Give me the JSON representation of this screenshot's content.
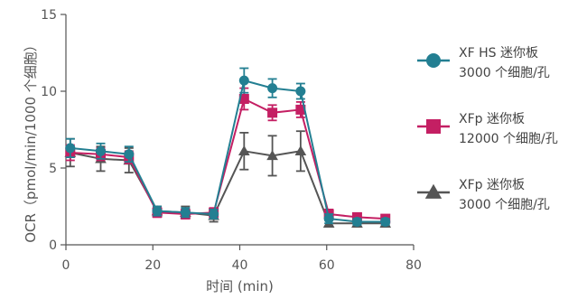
{
  "chart_data": {
    "type": "line",
    "title": "",
    "xlabel": "时间 (min)",
    "ylabel": "OCR（pmol/min/1000 个细胞）",
    "xlim": [
      0,
      80
    ],
    "ylim": [
      0,
      15
    ],
    "xticks": [
      "0",
      "20",
      "40",
      "60",
      "80"
    ],
    "yticks": [
      "0",
      "5",
      "10",
      "15"
    ],
    "grid": false,
    "legend_position": "right",
    "series": [
      {
        "name_line1": "XF HS 迷你板",
        "name_line2": "3000 个细胞/孔",
        "color": "#237f92",
        "marker": "circle",
        "x": [
          1,
          8,
          14.5,
          21,
          27.5,
          34,
          41,
          47.5,
          54,
          60.5,
          67,
          73.5
        ],
        "y": [
          6.3,
          6.1,
          5.9,
          2.2,
          2.1,
          2.0,
          10.7,
          10.2,
          10.0,
          1.7,
          1.5,
          1.5
        ],
        "err": [
          0.6,
          0.5,
          0.5,
          0.3,
          0.3,
          0.3,
          0.8,
          0.6,
          0.5,
          0.3,
          0.2,
          0.2
        ]
      },
      {
        "name_line1": "XFp 迷你板",
        "name_line2": "12000 个细胞/孔",
        "color": "#c41f63",
        "marker": "square",
        "x": [
          1,
          8,
          14.5,
          21,
          27.5,
          34,
          41,
          47.5,
          54,
          60.5,
          67,
          73.5
        ],
        "y": [
          6.0,
          5.9,
          5.7,
          2.1,
          2.0,
          2.1,
          9.5,
          8.6,
          8.8,
          2.0,
          1.8,
          1.7
        ],
        "err": [
          0.5,
          0.4,
          0.4,
          0.3,
          0.3,
          0.3,
          0.7,
          0.5,
          0.5,
          0.3,
          0.2,
          0.2
        ]
      },
      {
        "name_line1": "XFp 迷你板",
        "name_line2": "3000 个细胞/孔",
        "color": "#555555",
        "marker": "triangle",
        "x": [
          1,
          8,
          14.5,
          21,
          27.5,
          34,
          41,
          47.5,
          54,
          60.5,
          67,
          73.5
        ],
        "y": [
          6.0,
          5.6,
          5.5,
          2.2,
          2.1,
          1.9,
          6.1,
          5.8,
          6.1,
          1.4,
          1.4,
          1.4
        ],
        "err": [
          0.9,
          0.8,
          0.8,
          0.3,
          0.4,
          0.4,
          1.2,
          1.3,
          1.3,
          0.2,
          0.2,
          0.2
        ]
      }
    ]
  }
}
